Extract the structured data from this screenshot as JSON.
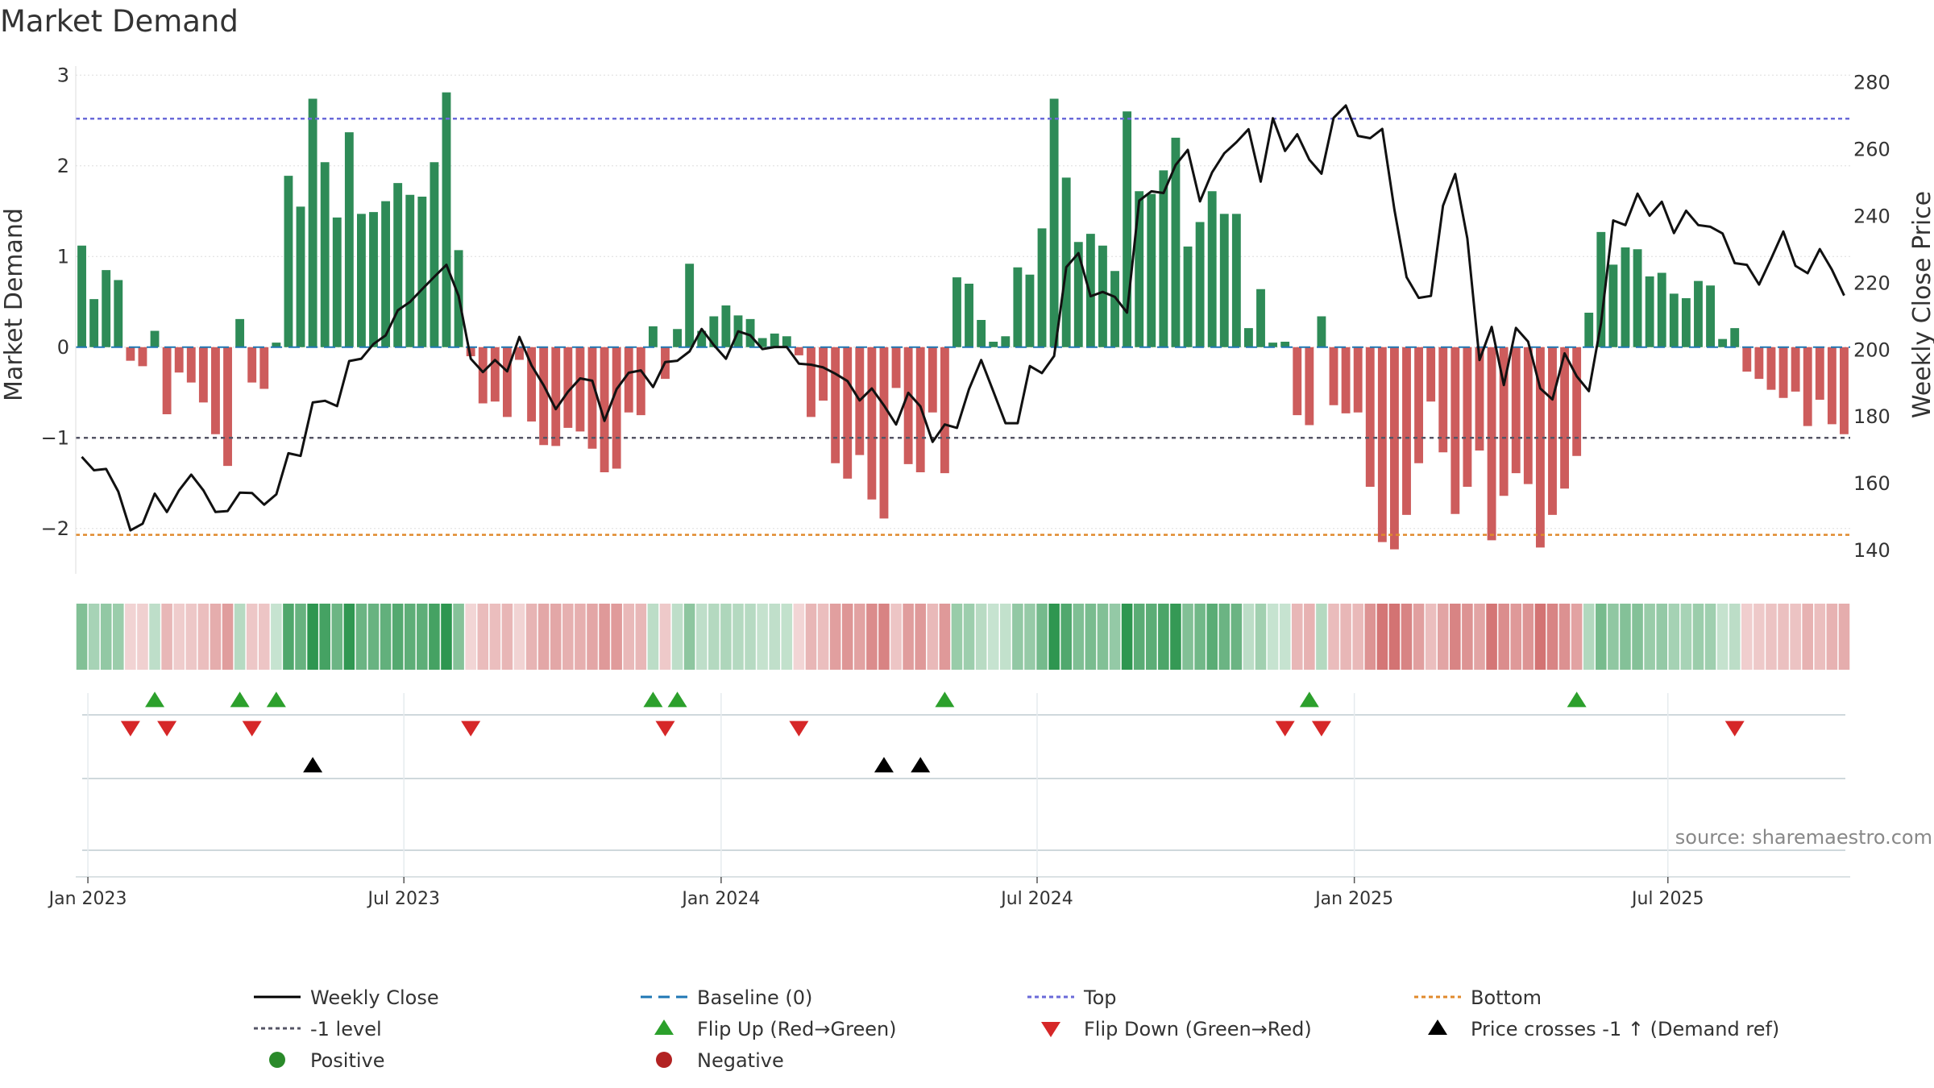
{
  "chart_data": {
    "type": "bar",
    "title": "Market Demand",
    "ylabel": "Market Demand",
    "y2label": "Weekly Close Price",
    "ylim": [
      -2.5,
      3.1
    ],
    "y2lim": [
      133,
      285
    ],
    "yticks": [
      3,
      2,
      1,
      0,
      -1,
      -2
    ],
    "ytick_labels": [
      "3",
      "2",
      "1",
      "0",
      "−1",
      "−2"
    ],
    "y2ticks": [
      280,
      260,
      240,
      220,
      200,
      180,
      160,
      140
    ],
    "top_level": 2.52,
    "bottom_level": -2.07,
    "minus1_level": -1,
    "x_tick_labels": [
      {
        "label": "Jan 2023",
        "week": 0.5
      },
      {
        "label": "Jul 2023",
        "week": 26.5
      },
      {
        "label": "Jan 2024",
        "week": 52.6
      },
      {
        "label": "Jul 2024",
        "week": 78.6
      },
      {
        "label": "Jan 2025",
        "week": 104.7
      },
      {
        "label": "Jul 2025",
        "week": 130.5
      }
    ],
    "demand": [
      1.12,
      0.53,
      0.85,
      0.74,
      -0.15,
      -0.21,
      0.18,
      -0.74,
      -0.28,
      -0.39,
      -0.61,
      -0.96,
      -1.31,
      0.31,
      -0.39,
      -0.46,
      0.05,
      1.89,
      1.55,
      2.74,
      2.04,
      1.43,
      2.37,
      1.47,
      1.49,
      1.61,
      1.81,
      1.68,
      1.66,
      2.04,
      2.81,
      1.07,
      -0.1,
      -0.62,
      -0.6,
      -0.77,
      -0.14,
      -0.82,
      -1.08,
      -1.09,
      -0.89,
      -0.93,
      -1.12,
      -1.38,
      -1.34,
      -0.72,
      -0.75,
      0.23,
      -0.35,
      0.2,
      0.92,
      0.18,
      0.34,
      0.46,
      0.35,
      0.31,
      0.1,
      0.15,
      0.12,
      -0.09,
      -0.77,
      -0.59,
      -1.28,
      -1.45,
      -1.19,
      -1.68,
      -1.89,
      -0.45,
      -1.29,
      -1.38,
      -0.72,
      -1.39,
      0.77,
      0.7,
      0.3,
      0.06,
      0.12,
      0.88,
      0.8,
      1.31,
      2.74,
      1.87,
      1.16,
      1.25,
      1.12,
      0.84,
      2.6,
      1.72,
      1.69,
      1.95,
      2.31,
      1.11,
      1.38,
      1.72,
      1.47,
      1.47,
      0.21,
      0.64,
      0.05,
      0.06,
      -0.75,
      -0.86,
      0.34,
      -0.64,
      -0.73,
      -0.72,
      -1.54,
      -2.15,
      -2.23,
      -1.85,
      -1.28,
      -0.6,
      -1.16,
      -1.84,
      -1.54,
      -1.14,
      -2.13,
      -1.64,
      -1.39,
      -1.51,
      -2.21,
      -1.85,
      -1.56,
      -1.2,
      0.38,
      1.27,
      0.91,
      1.1,
      1.08,
      0.78,
      0.82,
      0.59,
      0.54,
      0.73,
      0.68,
      0.09,
      0.21,
      -0.27,
      -0.35,
      -0.47,
      -0.56,
      -0.49,
      -0.87,
      -0.58,
      -0.85,
      -0.96
    ],
    "weekly_close": [
      168,
      164,
      164.4,
      157.6,
      146,
      148,
      157,
      151.5,
      158,
      162.7,
      158,
      151.5,
      151.8,
      157.3,
      157.2,
      153.7,
      156.8,
      169.1,
      168.3,
      184.3,
      184.8,
      183.2,
      196.7,
      197.4,
      201.8,
      204.4,
      211.9,
      214.4,
      218.2,
      221.9,
      225.5,
      216.2,
      197.4,
      193.4,
      197,
      193.6,
      203.9,
      195.4,
      189.4,
      182.3,
      187.5,
      191.5,
      190.8,
      178.8,
      188.3,
      193.2,
      193.9,
      188.9,
      196.4,
      196.8,
      199.6,
      206.3,
      201.5,
      197.4,
      205.6,
      204.4,
      200.3,
      200.9,
      200.9,
      195.9,
      195.6,
      194.8,
      192.9,
      190.7,
      184.9,
      188.5,
      183.4,
      177.7,
      187.2,
      183.1,
      172.5,
      177.7,
      176.7,
      188.3,
      197,
      187.6,
      178.1,
      178.1,
      195.2,
      193.1,
      198.2,
      224.8,
      229,
      216.1,
      217.4,
      215.9,
      211.2,
      244.7,
      247.5,
      247,
      255.4,
      259.9,
      244.5,
      253.2,
      258.9,
      262.2,
      266.1,
      250.4,
      269.4,
      259.6,
      264.6,
      257,
      252.8,
      269.5,
      273.2,
      264.1,
      263.4,
      266.2,
      242,
      221.8,
      215.6,
      216.2,
      243.2,
      252.7,
      233.4,
      197,
      206.9,
      189.5,
      206.6,
      202.5,
      188.5,
      185.2,
      199,
      192.1,
      187.7,
      208,
      238.8,
      237.4,
      246.8,
      240.2,
      244.4,
      235,
      241.7,
      237.4,
      236.9,
      234.9,
      226,
      225.5,
      219.6,
      227.4,
      235.5,
      225.2,
      223,
      230.2,
      224,
      216.3
    ],
    "flip_up_weeks": [
      6,
      13,
      16,
      47,
      49,
      71,
      101,
      123
    ],
    "flip_down_weeks": [
      4,
      7,
      14,
      32,
      48,
      59,
      99,
      102,
      136
    ],
    "price_cross_weeks": [
      19,
      66,
      69
    ],
    "legend": [
      {
        "label": "Weekly Close",
        "marker": "line",
        "color": "#000000"
      },
      {
        "label": "Baseline (0)",
        "marker": "dash",
        "color": "#1f77b4"
      },
      {
        "label": "Top",
        "marker": "dotted",
        "color": "#6a6ad8"
      },
      {
        "label": "Bottom",
        "marker": "dotted",
        "color": "#e08a2c"
      },
      {
        "label": "-1 level",
        "marker": "dotted",
        "color": "#555566"
      },
      {
        "label": "Flip Up (Red→Green)",
        "marker": "triangle-up",
        "color": "#2ca02c"
      },
      {
        "label": "Flip Down (Green→Red)",
        "marker": "triangle-down",
        "color": "#d62728"
      },
      {
        "label": "Price crosses -1 ↑ (Demand ref)",
        "marker": "triangle-up",
        "color": "#000000"
      },
      {
        "label": "Positive",
        "marker": "circle",
        "color": "#2a8a2a"
      },
      {
        "label": "Negative",
        "marker": "circle",
        "color": "#b22222"
      }
    ],
    "source": "source: sharemaestro.com"
  },
  "colors": {
    "positive_bar": "#2e8b57",
    "negative_bar": "#cd5c5c",
    "grid": "#dddddd"
  }
}
